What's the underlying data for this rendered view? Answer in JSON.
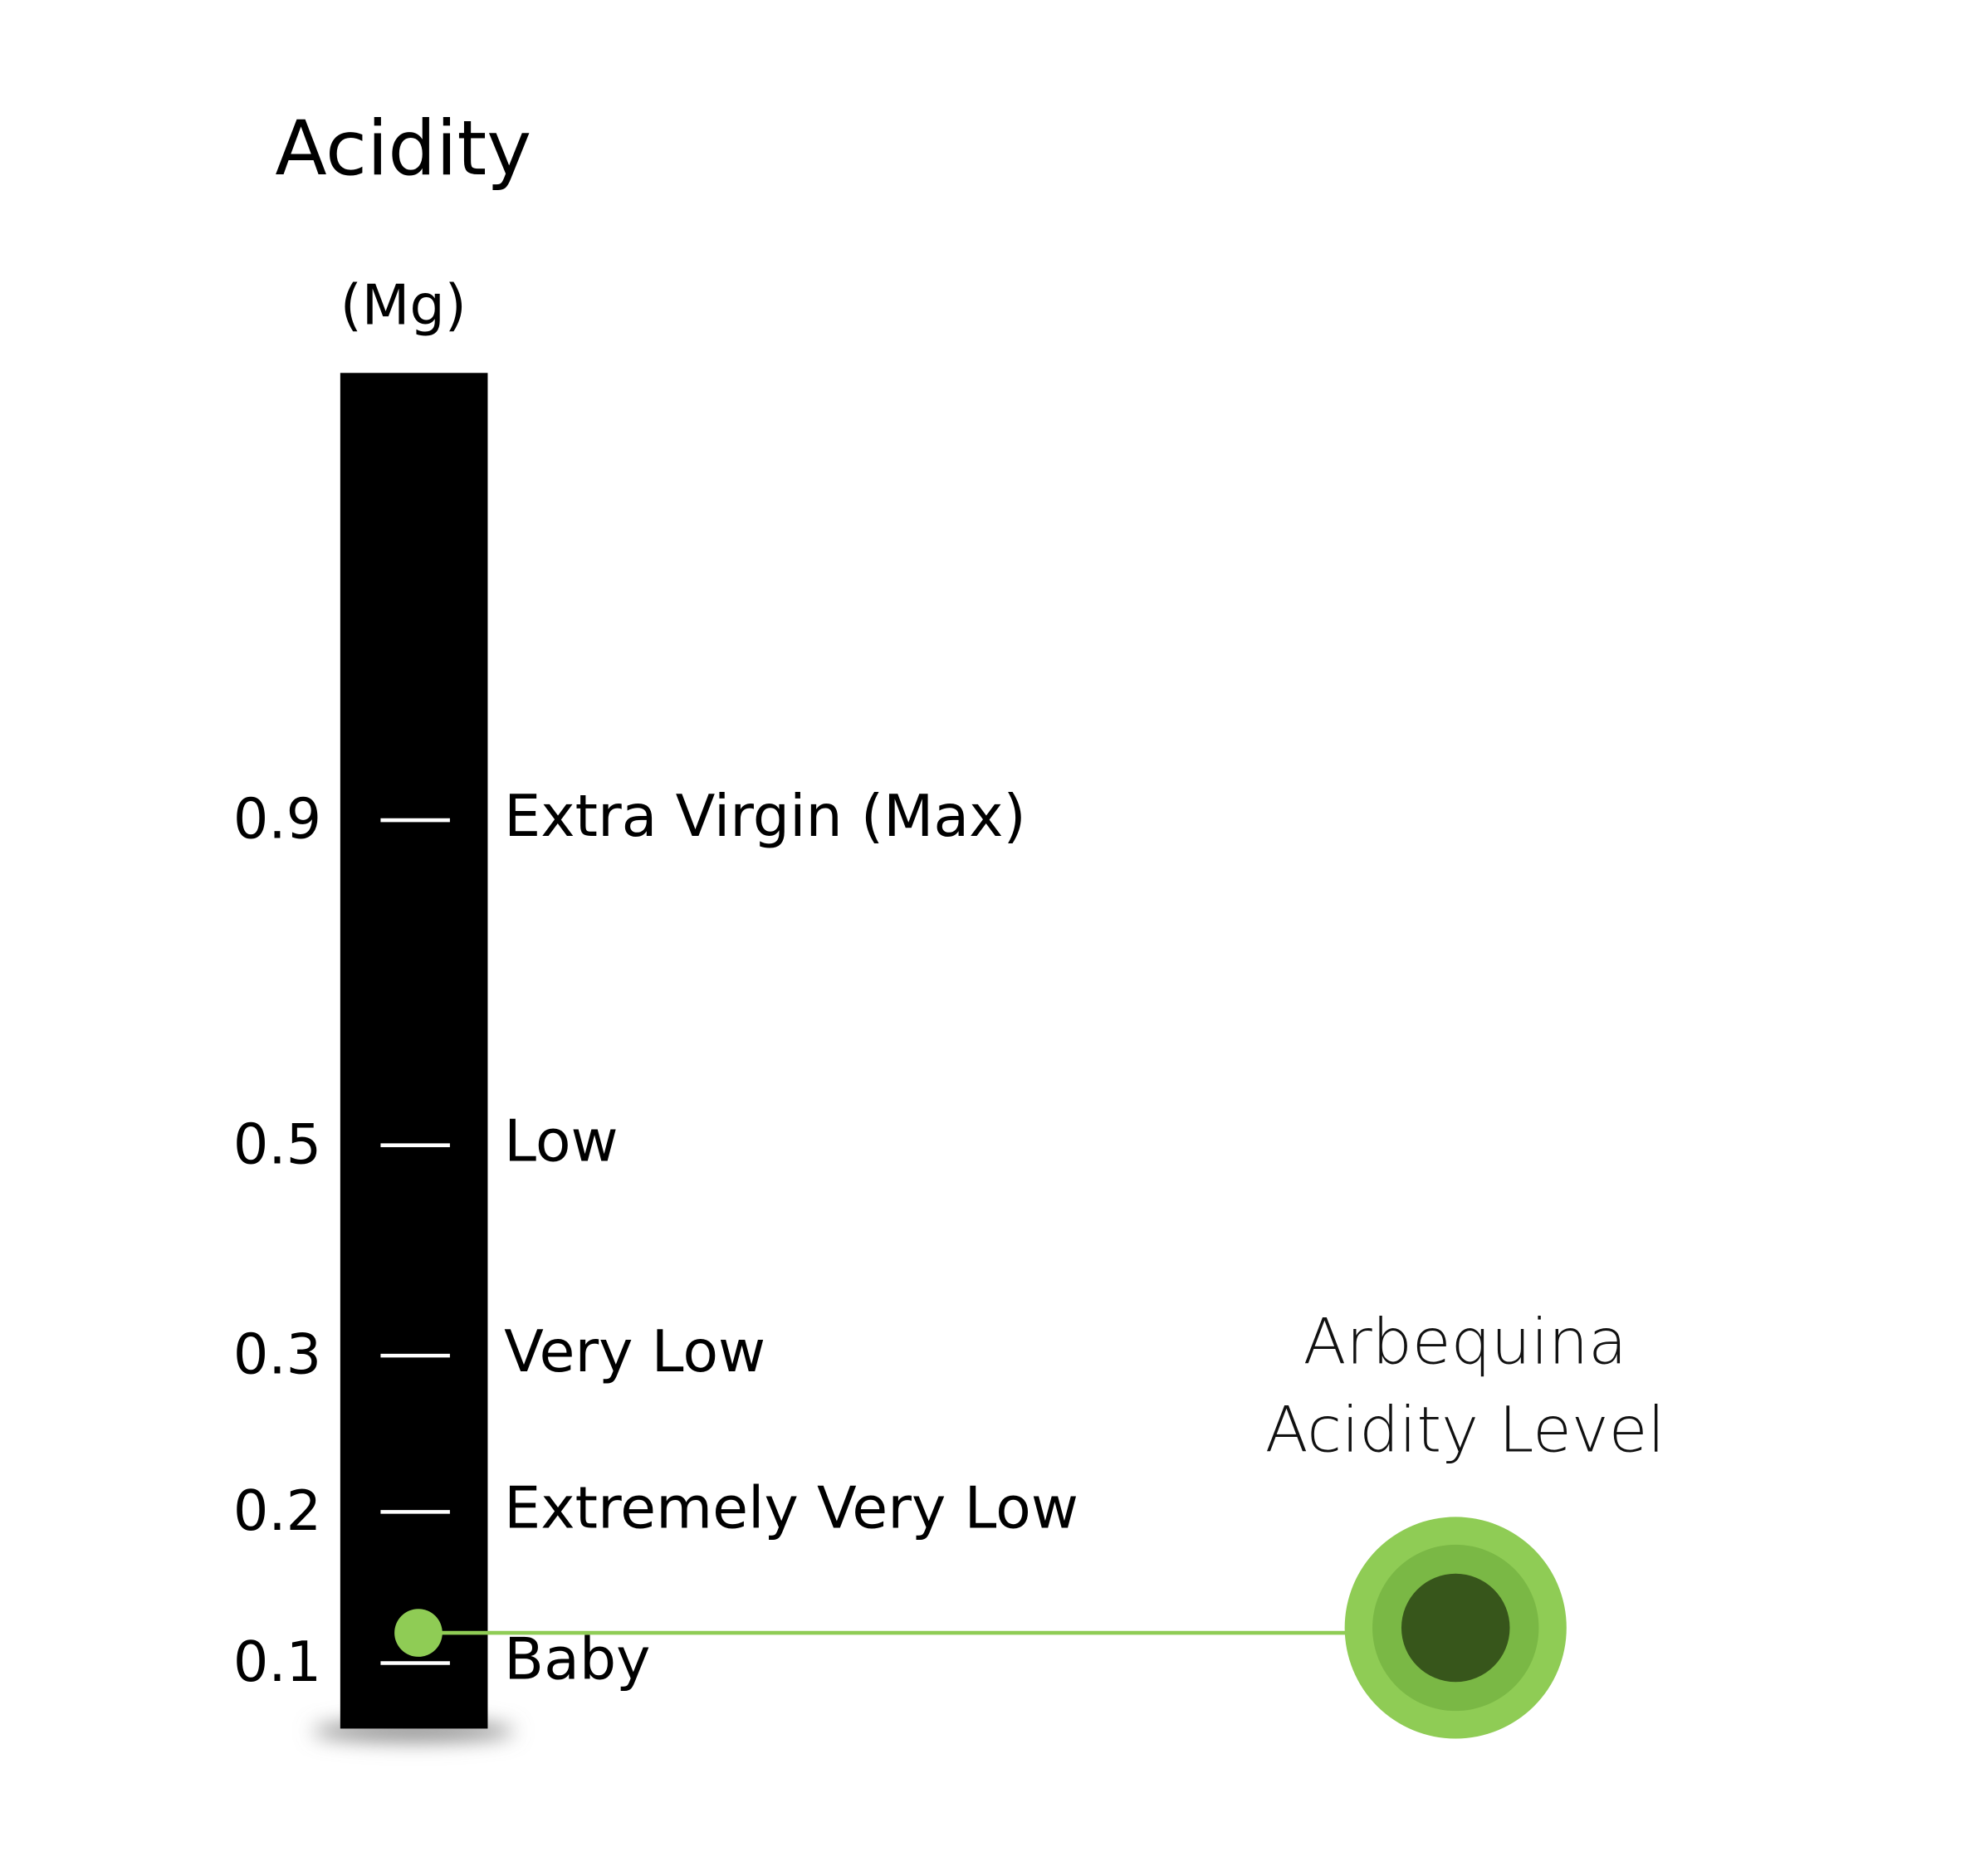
{
  "chart_data": {
    "type": "gauge",
    "title": "Acidity",
    "unit_label": "(Mg)",
    "yticks": [
      0.9,
      0.5,
      0.3,
      0.2,
      0.1
    ],
    "tick_descriptions": [
      "Extra Virgin (Max)",
      "Low",
      "Very Low",
      "Extremely Very Low",
      "Baby"
    ],
    "bar_color": "#000000",
    "series": [
      {
        "name": "Arbequina Acidity Level",
        "color": "#8fcc55",
        "values": [
          0.12
        ]
      }
    ]
  }
}
